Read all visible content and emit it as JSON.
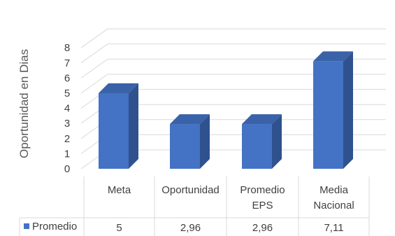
{
  "chart_data": {
    "type": "bar",
    "style": "3d-column-with-data-table",
    "ylabel": "Oportunidad en Dias",
    "ylim": [
      0,
      8
    ],
    "yticks": [
      "0",
      "1",
      "2",
      "3",
      "4",
      "5",
      "6",
      "7",
      "8"
    ],
    "grid": true,
    "categories": [
      [
        "Meta"
      ],
      [
        "Oportunidad"
      ],
      [
        "Promedio",
        "EPS"
      ],
      [
        "Media",
        "Nacional"
      ]
    ],
    "series": [
      {
        "name": "Promedio",
        "values": [
          5,
          2.96,
          2.96,
          7.11
        ],
        "labels": [
          "5",
          "2,96",
          "2,96",
          "7,11"
        ],
        "color": "#4472C4"
      }
    ]
  }
}
